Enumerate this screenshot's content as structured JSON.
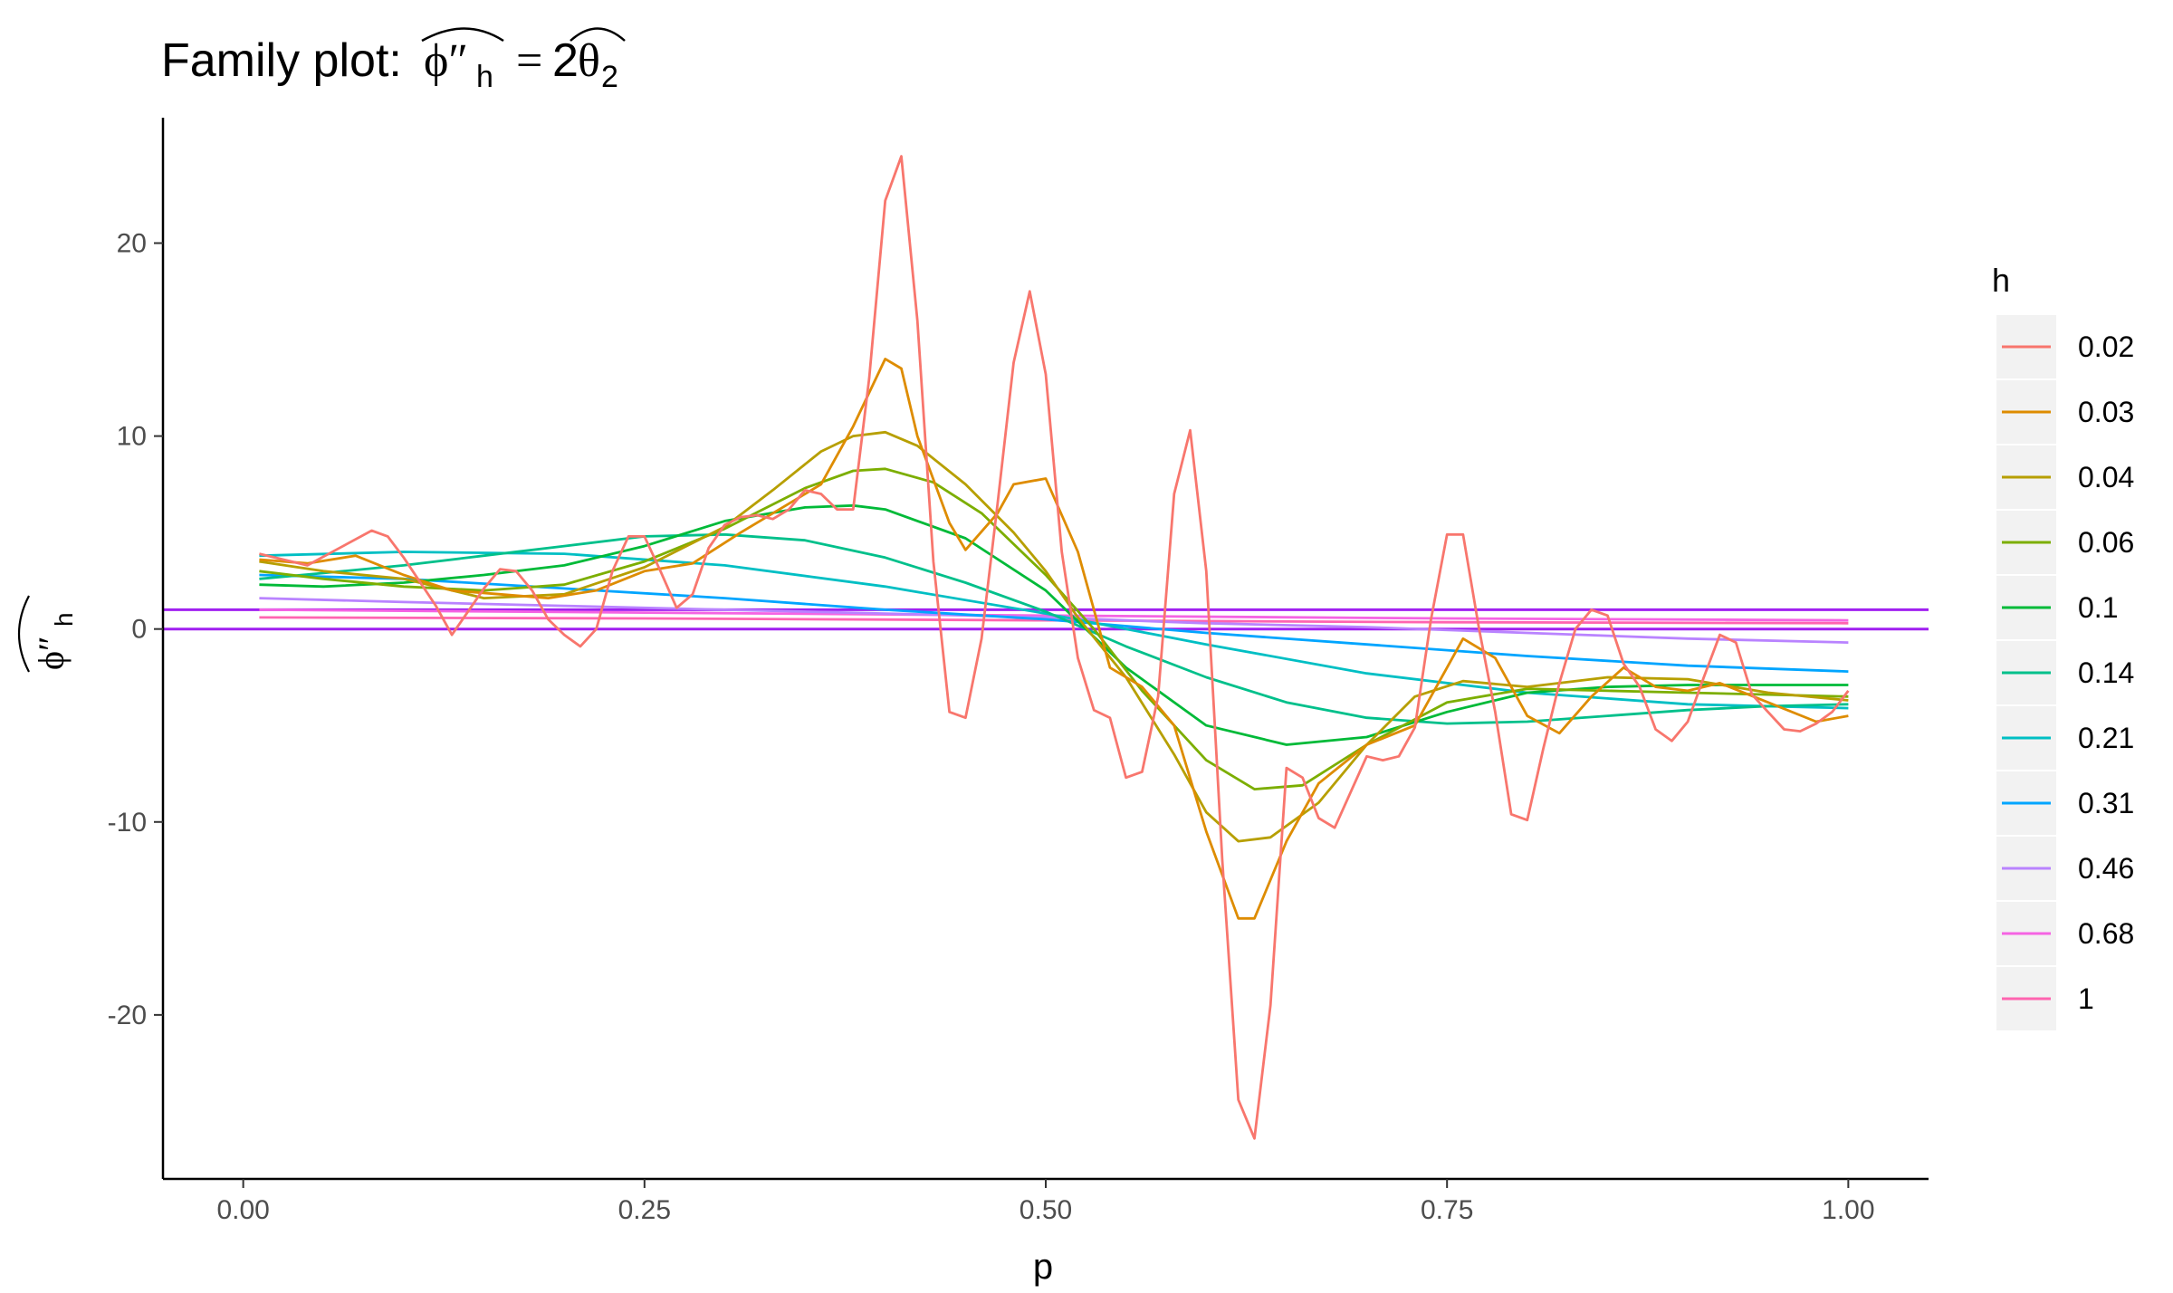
{
  "chart_data": {
    "type": "line",
    "title": "Family plot:",
    "title_formula": {
      "lhs_symbol": "ϕ″",
      "lhs_subscript": "h",
      "equals": "=",
      "rhs_coefficient": "2",
      "rhs_symbol": "θ",
      "rhs_subscript": "2"
    },
    "xlabel": "p",
    "ylabel": {
      "symbol": "ϕ″",
      "subscript": "h"
    },
    "xlim": [
      -0.05,
      1.05
    ],
    "ylim": [
      -28.5,
      26.5
    ],
    "xticks": [
      0.0,
      0.25,
      0.5,
      0.75,
      1.0
    ],
    "xtick_labels": [
      "0.00",
      "0.25",
      "0.50",
      "0.75",
      "1.00"
    ],
    "yticks": [
      -20,
      -10,
      0,
      10,
      20
    ],
    "ytick_labels": [
      "-20",
      "-10",
      "0",
      "10",
      "20"
    ],
    "grid": false,
    "legend": {
      "title": "h",
      "position": "right"
    },
    "hlines": [
      {
        "y": 0.0,
        "color": "#A020F0"
      },
      {
        "y": 1.0,
        "color": "#A020F0"
      }
    ],
    "series": [
      {
        "name": "0.02",
        "color": "#F8766D",
        "x": [
          0.01,
          0.04,
          0.06,
          0.08,
          0.09,
          0.1,
          0.12,
          0.13,
          0.15,
          0.16,
          0.17,
          0.18,
          0.19,
          0.2,
          0.21,
          0.22,
          0.23,
          0.24,
          0.25,
          0.26,
          0.27,
          0.28,
          0.29,
          0.3,
          0.31,
          0.32,
          0.33,
          0.34,
          0.35,
          0.36,
          0.37,
          0.38,
          0.39,
          0.4,
          0.41,
          0.42,
          0.43,
          0.44,
          0.45,
          0.46,
          0.47,
          0.48,
          0.49,
          0.5,
          0.51,
          0.52,
          0.53,
          0.54,
          0.55,
          0.56,
          0.57,
          0.58,
          0.59,
          0.6,
          0.61,
          0.62,
          0.63,
          0.64,
          0.65,
          0.66,
          0.67,
          0.68,
          0.7,
          0.71,
          0.72,
          0.73,
          0.74,
          0.75,
          0.76,
          0.77,
          0.78,
          0.79,
          0.8,
          0.81,
          0.82,
          0.83,
          0.84,
          0.85,
          0.86,
          0.87,
          0.88,
          0.89,
          0.9,
          0.91,
          0.92,
          0.93,
          0.94,
          0.95,
          0.96,
          0.97,
          0.98,
          0.99,
          1.0
        ],
        "y": [
          3.9,
          3.3,
          4.2,
          5.1,
          4.8,
          3.7,
          1.2,
          -0.3,
          2.1,
          3.1,
          3.0,
          2.0,
          0.5,
          -0.3,
          -0.9,
          0.0,
          3.0,
          4.8,
          4.8,
          3.0,
          1.1,
          1.8,
          4.2,
          5.4,
          5.8,
          5.9,
          5.7,
          6.2,
          7.2,
          7.0,
          6.2,
          6.2,
          13.0,
          22.2,
          24.5,
          16.0,
          3.5,
          -4.3,
          -4.6,
          -0.5,
          6.5,
          13.8,
          17.5,
          13.2,
          4.0,
          -1.5,
          -4.2,
          -4.6,
          -7.7,
          -7.4,
          -3.5,
          7.0,
          10.3,
          3.0,
          -12.0,
          -24.4,
          -26.4,
          -19.5,
          -7.2,
          -7.7,
          -9.8,
          -10.3,
          -6.6,
          -6.8,
          -6.6,
          -5.1,
          0.5,
          4.9,
          4.9,
          0.0,
          -4.3,
          -9.6,
          -9.9,
          -6.2,
          -2.8,
          0.0,
          1.0,
          0.7,
          -1.8,
          -3.0,
          -5.2,
          -5.8,
          -4.8,
          -2.5,
          -0.3,
          -0.7,
          -3.4,
          -4.3,
          -5.2,
          -5.3,
          -4.9,
          -4.3,
          -3.2
        ]
      },
      {
        "name": "0.03",
        "color": "#DE8C00",
        "x": [
          0.01,
          0.04,
          0.07,
          0.1,
          0.13,
          0.16,
          0.19,
          0.22,
          0.25,
          0.28,
          0.31,
          0.34,
          0.36,
          0.38,
          0.4,
          0.41,
          0.42,
          0.44,
          0.45,
          0.47,
          0.48,
          0.5,
          0.52,
          0.54,
          0.56,
          0.58,
          0.6,
          0.62,
          0.63,
          0.65,
          0.67,
          0.7,
          0.73,
          0.75,
          0.76,
          0.78,
          0.8,
          0.82,
          0.84,
          0.86,
          0.88,
          0.9,
          0.92,
          0.95,
          0.98,
          1.0
        ],
        "y": [
          3.6,
          3.4,
          3.8,
          2.8,
          2.0,
          1.8,
          1.6,
          2.0,
          3.0,
          3.4,
          5.0,
          6.5,
          7.5,
          10.5,
          14.0,
          13.5,
          10.0,
          5.5,
          4.1,
          6.0,
          7.5,
          7.8,
          4.0,
          -2.0,
          -3.0,
          -5.0,
          -10.5,
          -15.0,
          -15.0,
          -11.0,
          -8.0,
          -6.0,
          -5.0,
          -2.0,
          -0.5,
          -1.5,
          -4.5,
          -5.4,
          -3.5,
          -2.0,
          -3.0,
          -3.2,
          -2.8,
          -3.8,
          -4.8,
          -4.5
        ]
      },
      {
        "name": "0.04",
        "color": "#B79F00",
        "x": [
          0.01,
          0.05,
          0.1,
          0.15,
          0.2,
          0.25,
          0.3,
          0.33,
          0.36,
          0.38,
          0.4,
          0.42,
          0.45,
          0.48,
          0.5,
          0.52,
          0.55,
          0.58,
          0.6,
          0.62,
          0.64,
          0.67,
          0.7,
          0.73,
          0.76,
          0.8,
          0.85,
          0.9,
          0.95,
          1.0
        ],
        "y": [
          3.5,
          3.0,
          2.6,
          1.6,
          1.8,
          3.2,
          5.3,
          7.2,
          9.2,
          10.0,
          10.2,
          9.5,
          7.5,
          5.0,
          3.0,
          0.6,
          -2.5,
          -6.5,
          -9.5,
          -11.0,
          -10.8,
          -9.0,
          -6.0,
          -3.5,
          -2.7,
          -3.0,
          -2.5,
          -2.6,
          -3.3,
          -3.7
        ]
      },
      {
        "name": "0.06",
        "color": "#7CAE00",
        "x": [
          0.01,
          0.05,
          0.1,
          0.15,
          0.2,
          0.25,
          0.3,
          0.35,
          0.38,
          0.4,
          0.43,
          0.46,
          0.5,
          0.53,
          0.56,
          0.6,
          0.63,
          0.66,
          0.7,
          0.75,
          0.8,
          0.85,
          0.9,
          0.95,
          1.0
        ],
        "y": [
          3.0,
          2.6,
          2.2,
          2.0,
          2.3,
          3.5,
          5.2,
          7.3,
          8.2,
          8.3,
          7.6,
          6.0,
          2.8,
          0.0,
          -3.2,
          -6.8,
          -8.3,
          -8.1,
          -6.0,
          -3.8,
          -3.1,
          -3.2,
          -3.3,
          -3.4,
          -3.5
        ]
      },
      {
        "name": "0.1",
        "color": "#00BA38",
        "x": [
          0.01,
          0.05,
          0.1,
          0.15,
          0.2,
          0.25,
          0.3,
          0.35,
          0.38,
          0.4,
          0.45,
          0.5,
          0.55,
          0.6,
          0.65,
          0.7,
          0.75,
          0.8,
          0.85,
          0.9,
          0.95,
          1.0
        ],
        "y": [
          2.3,
          2.2,
          2.4,
          2.8,
          3.3,
          4.3,
          5.6,
          6.3,
          6.4,
          6.2,
          4.7,
          2.0,
          -2.0,
          -5.0,
          -6.0,
          -5.6,
          -4.3,
          -3.3,
          -3.0,
          -2.9,
          -2.9,
          -2.9
        ]
      },
      {
        "name": "0.14",
        "color": "#00C08B",
        "x": [
          0.01,
          0.05,
          0.1,
          0.15,
          0.2,
          0.25,
          0.3,
          0.35,
          0.4,
          0.45,
          0.5,
          0.55,
          0.6,
          0.65,
          0.7,
          0.75,
          0.8,
          0.85,
          0.9,
          0.95,
          1.0
        ],
        "y": [
          2.6,
          2.9,
          3.3,
          3.8,
          4.3,
          4.8,
          4.9,
          4.6,
          3.7,
          2.4,
          0.9,
          -0.9,
          -2.5,
          -3.8,
          -4.6,
          -4.9,
          -4.8,
          -4.5,
          -4.2,
          -4.0,
          -3.9
        ]
      },
      {
        "name": "0.21",
        "color": "#00BFC4",
        "x": [
          0.01,
          0.1,
          0.2,
          0.3,
          0.4,
          0.5,
          0.6,
          0.7,
          0.8,
          0.9,
          1.0
        ],
        "y": [
          3.8,
          4.0,
          3.9,
          3.3,
          2.2,
          0.8,
          -0.8,
          -2.3,
          -3.3,
          -3.9,
          -4.1
        ]
      },
      {
        "name": "0.31",
        "color": "#00A5FF",
        "x": [
          0.01,
          0.1,
          0.2,
          0.3,
          0.4,
          0.5,
          0.6,
          0.7,
          0.8,
          0.9,
          1.0
        ],
        "y": [
          2.8,
          2.6,
          2.1,
          1.6,
          1.0,
          0.5,
          -0.2,
          -0.8,
          -1.4,
          -1.9,
          -2.2
        ]
      },
      {
        "name": "0.46",
        "color": "#B983FF",
        "x": [
          0.01,
          0.1,
          0.2,
          0.3,
          0.4,
          0.5,
          0.6,
          0.7,
          0.8,
          0.9,
          1.0
        ],
        "y": [
          1.6,
          1.4,
          1.2,
          1.0,
          0.8,
          0.6,
          0.3,
          0.1,
          -0.2,
          -0.5,
          -0.7
        ]
      },
      {
        "name": "0.68",
        "color": "#F564E3",
        "x": [
          0.01,
          0.25,
          0.5,
          0.75,
          1.0
        ],
        "y": [
          1.0,
          0.85,
          0.7,
          0.55,
          0.45
        ]
      },
      {
        "name": "1",
        "color": "#FF64B0",
        "x": [
          0.01,
          0.25,
          0.5,
          0.75,
          1.0
        ],
        "y": [
          0.6,
          0.55,
          0.45,
          0.35,
          0.3
        ]
      }
    ]
  }
}
